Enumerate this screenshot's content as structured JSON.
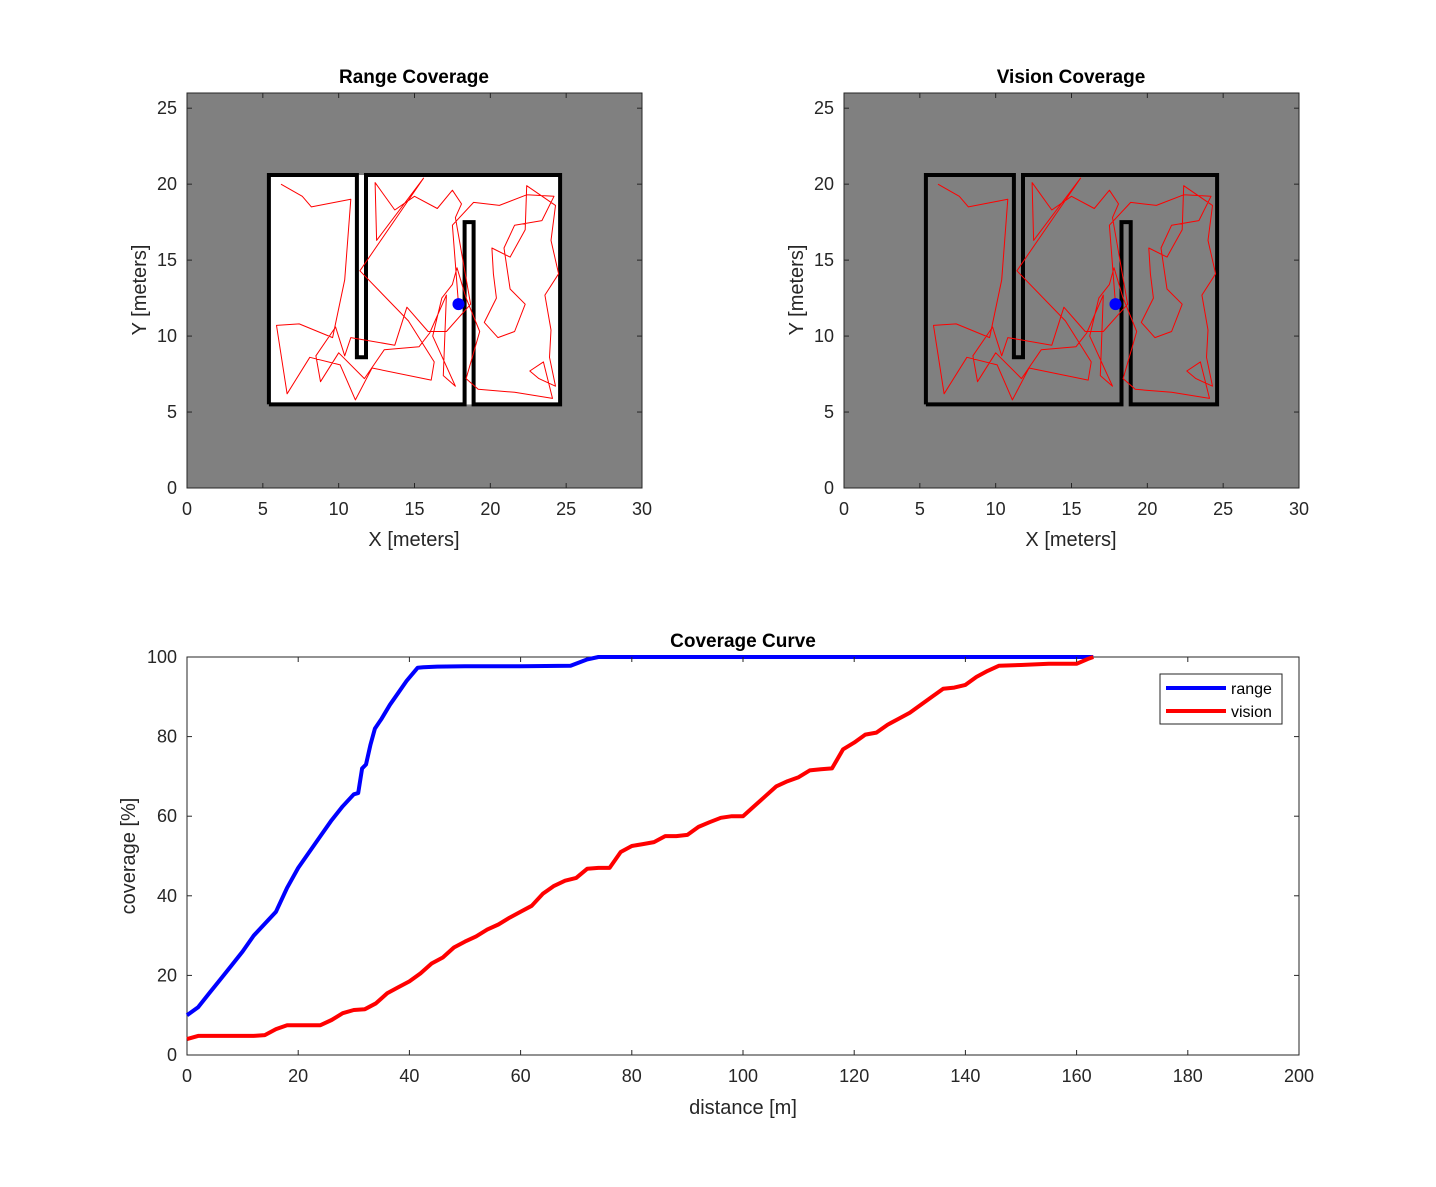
{
  "colors": {
    "unexplored": "#808080",
    "explored": "#ffffff",
    "walls": "#000000",
    "path": "#ff0000",
    "robot": "#0000ff",
    "range_series": "#0000ff",
    "vision_series": "#ff0000"
  },
  "chart_data": [
    {
      "id": "range",
      "type": "map",
      "title": "Range Coverage",
      "xlabel": "X [meters]",
      "ylabel": "Y [meters]",
      "xlim": [
        0,
        30
      ],
      "ylim": [
        0,
        26
      ],
      "xticks": [
        0,
        5,
        10,
        15,
        20,
        25,
        30
      ],
      "yticks": [
        0,
        5,
        10,
        15,
        20,
        25
      ],
      "background": "unexplored",
      "explored_area": [
        [
          5.3,
          5.5
        ],
        [
          24.6,
          20.6
        ]
      ],
      "walls": [
        [
          [
            5.4,
            5.5
          ],
          [
            5.4,
            20.6
          ],
          [
            11.2,
            20.6
          ],
          [
            11.2,
            8.6
          ],
          [
            11.8,
            8.6
          ],
          [
            11.8,
            20.6
          ],
          [
            24.6,
            20.6
          ],
          [
            24.6,
            5.5
          ],
          [
            18.9,
            5.5
          ],
          [
            18.9,
            17.5
          ],
          [
            18.3,
            17.5
          ],
          [
            18.3,
            5.5
          ],
          [
            5.4,
            5.5
          ]
        ]
      ],
      "robot": [
        17.9,
        12.1
      ],
      "path": [
        [
          6.2,
          20.0
        ],
        [
          7.6,
          19.2
        ],
        [
          8.2,
          18.5
        ],
        [
          10.8,
          19.0
        ],
        [
          10.4,
          13.7
        ],
        [
          9.6,
          9.9
        ],
        [
          7.4,
          10.8
        ],
        [
          5.9,
          10.7
        ],
        [
          6.6,
          6.2
        ],
        [
          8.1,
          8.6
        ],
        [
          10.1,
          8.1
        ],
        [
          11.1,
          5.8
        ],
        [
          12.2,
          7.9
        ],
        [
          16.1,
          7.1
        ],
        [
          16.3,
          8.3
        ],
        [
          14.6,
          11.0
        ],
        [
          11.4,
          14.3
        ],
        [
          15.6,
          20.4
        ],
        [
          12.5,
          16.3
        ],
        [
          12.4,
          20.1
        ],
        [
          13.7,
          18.3
        ],
        [
          15.0,
          19.2
        ],
        [
          16.5,
          18.4
        ],
        [
          17.5,
          19.6
        ],
        [
          18.1,
          18.7
        ],
        [
          17.7,
          17.8
        ],
        [
          18.7,
          12.1
        ],
        [
          17.1,
          10.3
        ],
        [
          15.9,
          10.3
        ],
        [
          14.5,
          11.9
        ],
        [
          13.7,
          9.4
        ],
        [
          10.8,
          9.9
        ],
        [
          10.4,
          8.7
        ],
        [
          9.8,
          10.6
        ],
        [
          8.5,
          8.7
        ],
        [
          8.8,
          7.0
        ],
        [
          10.0,
          8.9
        ],
        [
          11.7,
          7.2
        ],
        [
          13.0,
          9.1
        ],
        [
          15.3,
          9.3
        ],
        [
          16.0,
          10.2
        ],
        [
          17.1,
          12.7
        ],
        [
          16.9,
          7.4
        ],
        [
          17.7,
          6.7
        ],
        [
          16.2,
          10.0
        ],
        [
          16.8,
          12.5
        ],
        [
          17.5,
          13.4
        ],
        [
          17.8,
          14.5
        ],
        [
          18.4,
          12.5
        ],
        [
          19.3,
          10.3
        ],
        [
          18.4,
          7.2
        ],
        [
          19.2,
          6.5
        ],
        [
          21.6,
          6.3
        ],
        [
          24.1,
          5.9
        ],
        [
          23.5,
          8.3
        ],
        [
          22.6,
          7.7
        ],
        [
          23.2,
          7.2
        ],
        [
          24.3,
          6.7
        ],
        [
          23.9,
          8.6
        ],
        [
          24.0,
          10.4
        ],
        [
          23.6,
          12.7
        ],
        [
          24.5,
          14.1
        ],
        [
          24.0,
          16.3
        ],
        [
          24.3,
          18.6
        ],
        [
          22.4,
          19.9
        ],
        [
          22.3,
          17.0
        ],
        [
          21.3,
          15.2
        ],
        [
          20.1,
          15.8
        ],
        [
          20.2,
          14.1
        ],
        [
          20.4,
          12.5
        ],
        [
          19.6,
          10.9
        ],
        [
          20.5,
          9.9
        ],
        [
          21.6,
          10.3
        ],
        [
          22.3,
          12.1
        ],
        [
          21.3,
          13.1
        ],
        [
          20.9,
          15.8
        ],
        [
          21.6,
          17.3
        ],
        [
          23.4,
          17.6
        ],
        [
          24.2,
          19.2
        ],
        [
          22.4,
          19.3
        ],
        [
          20.6,
          18.6
        ],
        [
          18.9,
          18.8
        ],
        [
          17.5,
          17.3
        ],
        [
          17.9,
          12.1
        ]
      ]
    },
    {
      "id": "vision",
      "type": "map",
      "title": "Vision Coverage",
      "xlabel": "X [meters]",
      "ylabel": "Y [meters]",
      "xlim": [
        0,
        30
      ],
      "ylim": [
        0,
        26
      ],
      "xticks": [
        0,
        5,
        10,
        15,
        20,
        25,
        30
      ],
      "yticks": [
        0,
        5,
        10,
        15,
        20,
        25
      ],
      "background": "unexplored",
      "walls": [
        [
          [
            5.4,
            5.5
          ],
          [
            5.4,
            20.6
          ],
          [
            11.2,
            20.6
          ],
          [
            11.2,
            8.6
          ],
          [
            11.8,
            8.6
          ],
          [
            11.8,
            20.6
          ],
          [
            24.6,
            20.6
          ],
          [
            24.6,
            5.5
          ],
          [
            18.9,
            5.5
          ],
          [
            18.9,
            17.5
          ],
          [
            18.3,
            17.5
          ],
          [
            18.3,
            5.5
          ],
          [
            5.4,
            5.5
          ]
        ]
      ],
      "robot": [
        17.9,
        12.1
      ],
      "path": "same as range"
    },
    {
      "id": "curve",
      "type": "line",
      "title": "Coverage Curve",
      "xlabel": "distance [m]",
      "ylabel": "coverage [%]",
      "xlim": [
        0,
        200
      ],
      "ylim": [
        0,
        100
      ],
      "xticks": [
        0,
        20,
        40,
        60,
        80,
        100,
        120,
        140,
        160,
        180,
        200
      ],
      "yticks": [
        0,
        20,
        40,
        60,
        80,
        100
      ],
      "legend_position": "top-right",
      "series": [
        {
          "name": "range",
          "color": "#0000ff",
          "points": [
            [
              0,
              10
            ],
            [
              2,
              12
            ],
            [
              4,
              15.5
            ],
            [
              6,
              19
            ],
            [
              8,
              22.5
            ],
            [
              10,
              26
            ],
            [
              12,
              30
            ],
            [
              14,
              33
            ],
            [
              16,
              36
            ],
            [
              18,
              42
            ],
            [
              20,
              47
            ],
            [
              22,
              51
            ],
            [
              24,
              55
            ],
            [
              26,
              59
            ],
            [
              28,
              62.5
            ],
            [
              30,
              65.5
            ],
            [
              30.8,
              65.8
            ],
            [
              31.5,
              72
            ],
            [
              32.2,
              73
            ],
            [
              33,
              78
            ],
            [
              33.8,
              82
            ],
            [
              35,
              84.5
            ],
            [
              36.5,
              88
            ],
            [
              38,
              91
            ],
            [
              39.5,
              94
            ],
            [
              41.5,
              97.3
            ],
            [
              42.5,
              97.4
            ],
            [
              45,
              97.6
            ],
            [
              50,
              97.7
            ],
            [
              60,
              97.7
            ],
            [
              69,
              97.8
            ],
            [
              72,
              99.4
            ],
            [
              74,
              100
            ],
            [
              80,
              100
            ],
            [
              120,
              100
            ],
            [
              163,
              100
            ]
          ]
        },
        {
          "name": "vision",
          "color": "#ff0000",
          "points": [
            [
              0,
              4
            ],
            [
              2,
              4.8
            ],
            [
              4,
              4.8
            ],
            [
              8,
              4.8
            ],
            [
              12,
              4.8
            ],
            [
              14,
              5
            ],
            [
              16,
              6.5
            ],
            [
              18,
              7.5
            ],
            [
              22,
              7.5
            ],
            [
              24,
              7.5
            ],
            [
              26,
              8.8
            ],
            [
              28,
              10.5
            ],
            [
              30,
              11.3
            ],
            [
              32,
              11.5
            ],
            [
              34,
              13
            ],
            [
              36,
              15.5
            ],
            [
              38,
              17
            ],
            [
              40,
              18.5
            ],
            [
              42,
              20.5
            ],
            [
              44,
              23
            ],
            [
              46,
              24.5
            ],
            [
              48,
              27
            ],
            [
              50,
              28.5
            ],
            [
              52,
              29.8
            ],
            [
              54,
              31.5
            ],
            [
              56,
              32.8
            ],
            [
              58,
              34.5
            ],
            [
              60,
              36
            ],
            [
              62,
              37.5
            ],
            [
              64,
              40.5
            ],
            [
              66,
              42.5
            ],
            [
              68,
              43.8
            ],
            [
              70,
              44.5
            ],
            [
              72,
              46.8
            ],
            [
              74,
              47
            ],
            [
              76,
              47
            ],
            [
              78,
              51
            ],
            [
              80,
              52.5
            ],
            [
              82,
              53
            ],
            [
              84,
              53.5
            ],
            [
              86,
              55
            ],
            [
              88,
              55
            ],
            [
              90,
              55.3
            ],
            [
              92,
              57.3
            ],
            [
              94,
              58.5
            ],
            [
              96,
              59.6
            ],
            [
              98,
              60
            ],
            [
              100,
              60
            ],
            [
              102,
              62.5
            ],
            [
              104,
              65
            ],
            [
              106,
              67.5
            ],
            [
              108,
              68.8
            ],
            [
              110,
              69.8
            ],
            [
              112,
              71.5
            ],
            [
              114,
              71.8
            ],
            [
              116,
              72
            ],
            [
              118,
              76.8
            ],
            [
              120,
              78.5
            ],
            [
              122,
              80.5
            ],
            [
              124,
              81
            ],
            [
              126,
              83
            ],
            [
              128,
              84.5
            ],
            [
              130,
              86
            ],
            [
              132,
              88
            ],
            [
              134,
              90
            ],
            [
              136,
              92
            ],
            [
              138,
              92.3
            ],
            [
              140,
              93
            ],
            [
              142,
              95
            ],
            [
              144,
              96.5
            ],
            [
              146,
              97.8
            ],
            [
              148,
              97.9
            ],
            [
              150,
              98
            ],
            [
              155,
              98.3
            ],
            [
              160,
              98.3
            ],
            [
              162,
              99.5
            ],
            [
              163,
              100
            ]
          ]
        }
      ]
    }
  ]
}
